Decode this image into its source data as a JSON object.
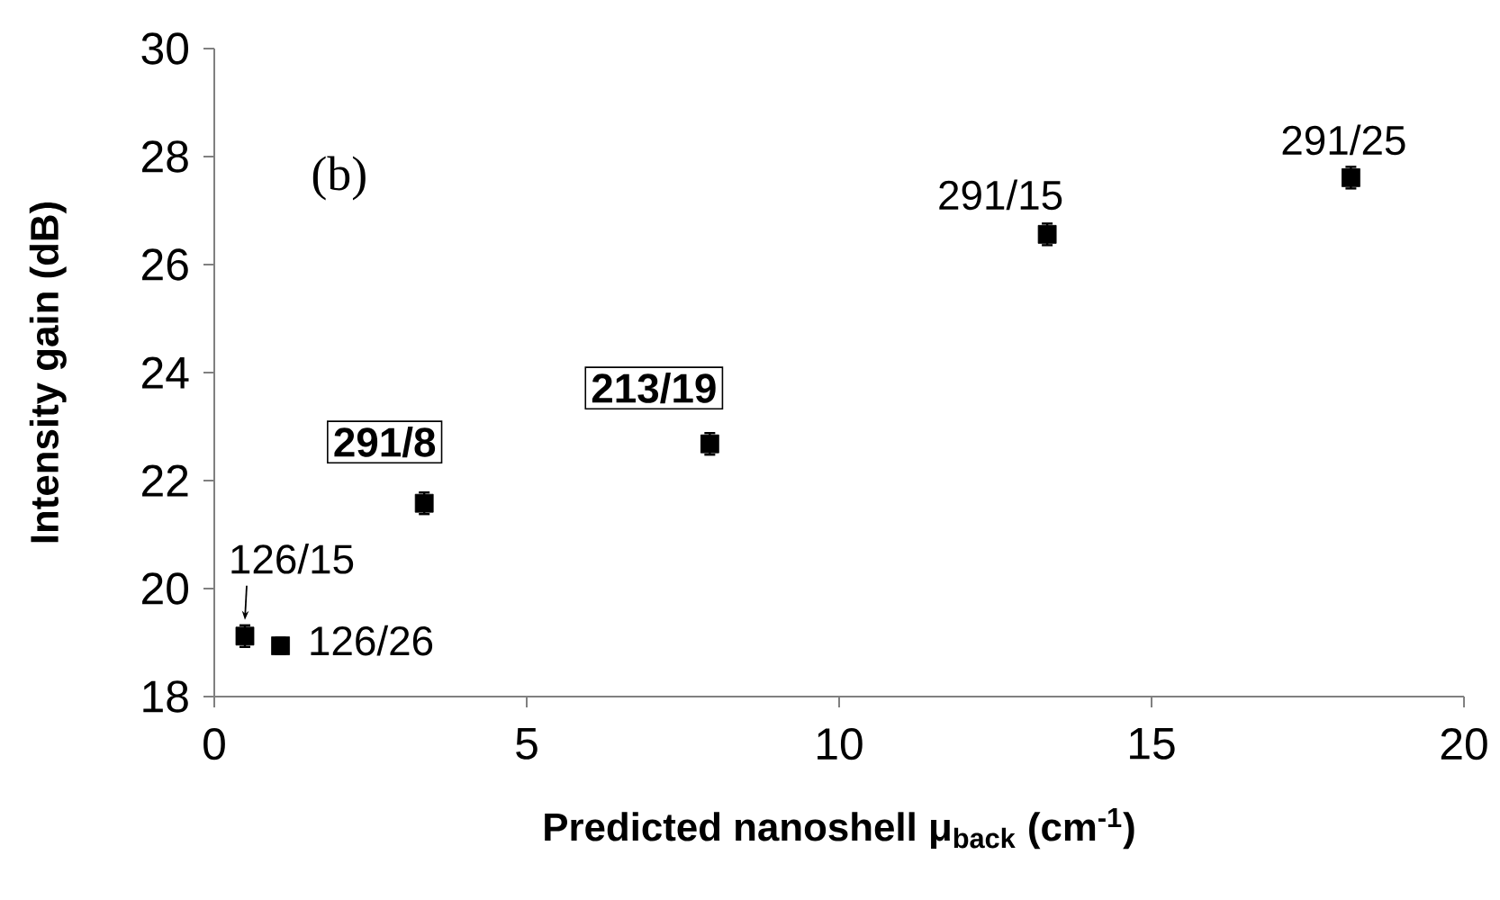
{
  "chart_data": {
    "type": "scatter",
    "xlabel": "Predicted nanoshell μ$_{back}$ (cm$^{-1}$)",
    "ylabel": "Intensity gain (dB)",
    "x": [
      0.49,
      1.06,
      3.36,
      7.93,
      13.33,
      18.19
    ],
    "values": [
      19.12,
      18.94,
      21.58,
      22.68,
      26.56,
      27.61
    ],
    "errors": [
      0.2,
      0.15,
      0.2,
      0.2,
      0.2,
      0.2
    ],
    "color": "#000000",
    "marker": "square",
    "grid": false,
    "xlim": [
      0,
      20
    ],
    "ylim": [
      18,
      30
    ],
    "xticks": [
      0,
      5,
      10,
      15,
      20
    ],
    "yticks": [
      18,
      20,
      22,
      24,
      26,
      28,
      30
    ],
    "annotations": [
      {
        "text": "126/15",
        "x": 0.49,
        "y": 19.12
      },
      {
        "text": "126/26",
        "x": 1.06,
        "y": 18.94
      },
      {
        "text": "291/8",
        "x": 3.36,
        "y": 21.58
      },
      {
        "text": "213/19",
        "x": 7.93,
        "y": 22.68
      },
      {
        "text": "291/15",
        "x": 13.33,
        "y": 26.56
      },
      {
        "text": "291/25",
        "x": 18.19,
        "y": 27.61
      },
      "(b)"
    ]
  }
}
